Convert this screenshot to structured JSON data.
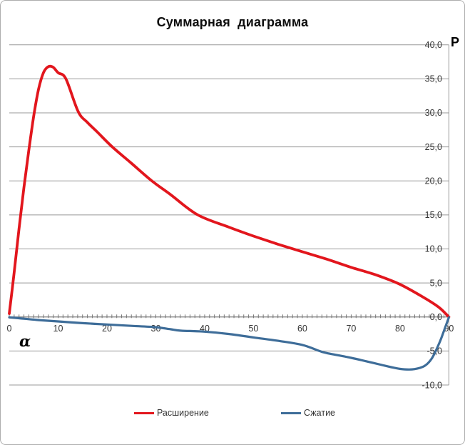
{
  "title": "Суммарная диаграмма",
  "chart_data": {
    "type": "line",
    "title": "Суммарная диаграмма",
    "x_axis_label": "α",
    "y_axis_label": "P",
    "xlim": [
      0,
      90
    ],
    "ylim": [
      -10,
      40
    ],
    "grid": "horizontal",
    "legend_position": "bottom",
    "x_tick_labels": [
      "0",
      "10",
      "20",
      "30",
      "40",
      "50",
      "60",
      "70",
      "80",
      "90"
    ],
    "x_ticks": [
      0,
      10,
      20,
      30,
      40,
      50,
      60,
      70,
      80,
      90
    ],
    "x_minor_tick_interval": 1,
    "y_tick_labels": [
      "40,0",
      "35,0",
      "30,0",
      "25,0",
      "20,0",
      "15,0",
      "10,0",
      "5,0",
      "0,0",
      "-5,0",
      "-10,0"
    ],
    "y_ticks": [
      40,
      35,
      30,
      25,
      20,
      15,
      10,
      5,
      0,
      -5,
      -10
    ],
    "series": [
      {
        "id": "expansion",
        "name": "Расширение",
        "color": "#e2161d",
        "x": [
          0,
          1,
          2,
          3,
          4,
          5,
          6,
          7,
          8,
          9,
          10,
          11.6,
          14.1,
          16,
          18,
          21.1,
          25,
          29.2,
          33,
          38.6,
          45,
          50,
          55,
          60,
          65,
          70,
          75,
          80,
          85,
          88,
          90
        ],
        "y": [
          0.5,
          6.5,
          13,
          19,
          24.5,
          29.5,
          33.5,
          35.9,
          36.8,
          36.7,
          35.9,
          35,
          30.2,
          28.6,
          27.2,
          25,
          22.6,
          20,
          18,
          15,
          13.2,
          11.9,
          10.7,
          9.6,
          8.5,
          7.3,
          6.2,
          4.8,
          2.8,
          1.4,
          0
        ]
      },
      {
        "id": "compression",
        "name": "Сжатие",
        "color": "#3e6d99",
        "x": [
          0,
          3,
          6,
          10,
          15,
          20,
          25,
          30,
          33,
          35,
          40,
          45,
          50,
          55,
          60,
          63.5,
          65,
          70,
          73,
          76,
          79,
          81,
          83,
          85,
          86.5,
          88,
          89,
          90
        ],
        "y": [
          -0.05,
          -0.25,
          -0.45,
          -0.65,
          -0.9,
          -1.1,
          -1.3,
          -1.5,
          -1.8,
          -2.0,
          -2.15,
          -2.5,
          -3.0,
          -3.5,
          -4.1,
          -5.0,
          -5.3,
          -6.0,
          -6.5,
          -7.0,
          -7.5,
          -7.7,
          -7.65,
          -7.2,
          -6.1,
          -3.9,
          -2.0,
          -0.05
        ]
      }
    ],
    "colors": {
      "gridline": "#999999",
      "axis": "#777777",
      "tick_label": "#333333",
      "plot_border": "#999999"
    }
  },
  "legend": {
    "items": [
      {
        "label": "Расширение",
        "color": "#e2161d"
      },
      {
        "label": "Сжатие",
        "color": "#3e6d99"
      }
    ]
  }
}
